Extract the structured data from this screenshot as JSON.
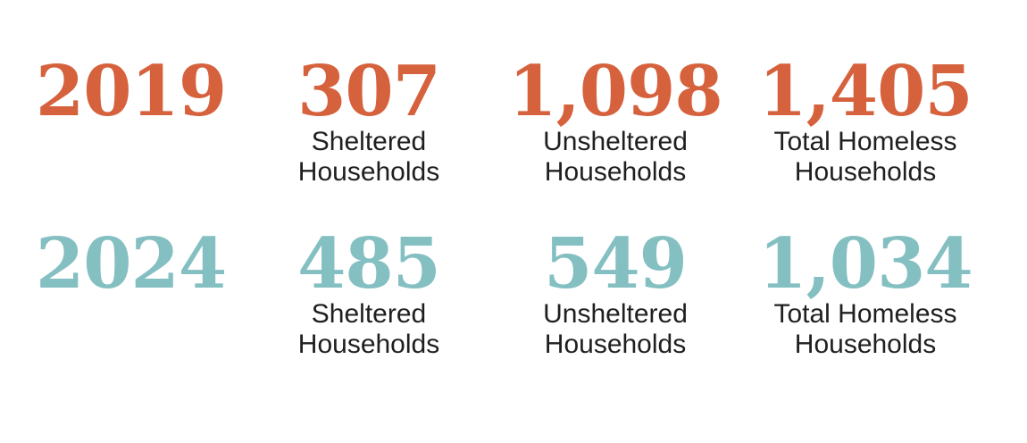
{
  "rows": [
    {
      "year": "2019",
      "color": "#d6613d",
      "stats": [
        {
          "value": "307",
          "label": [
            "Sheltered",
            "Households"
          ]
        },
        {
          "value": "1,098",
          "label": [
            "Unsheltered",
            "Households"
          ]
        },
        {
          "value": "1,405",
          "label": [
            "Total Homeless",
            "Households"
          ]
        }
      ]
    },
    {
      "year": "2024",
      "color": "#84bfc2",
      "stats": [
        {
          "value": "485",
          "label": [
            "Sheltered",
            "Households"
          ]
        },
        {
          "value": "549",
          "label": [
            "Unsheltered",
            "Households"
          ]
        },
        {
          "value": "1,034",
          "label": [
            "Total Homeless",
            "Households"
          ]
        }
      ]
    }
  ]
}
